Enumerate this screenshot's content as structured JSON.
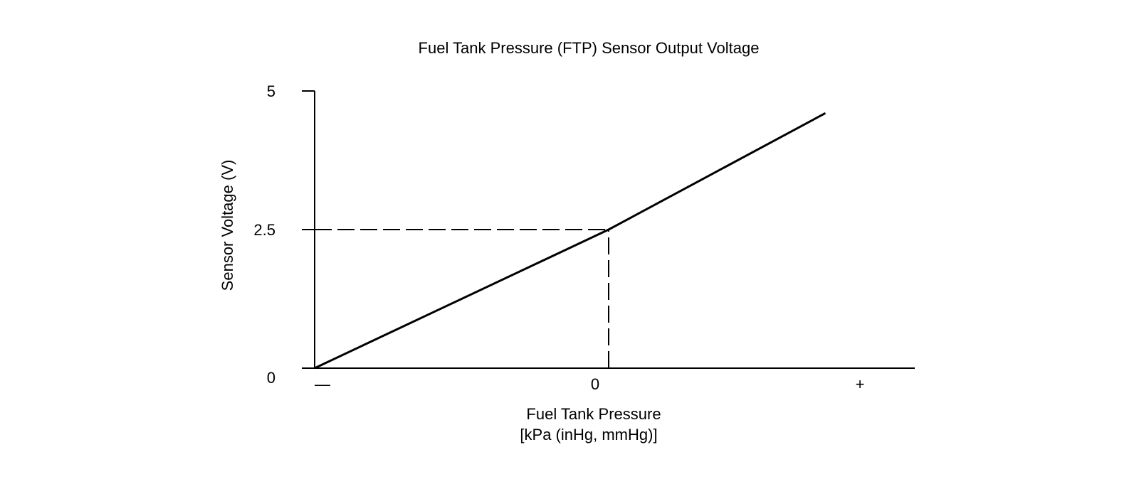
{
  "chart_data": {
    "type": "line",
    "title": "Fuel Tank Pressure (FTP) Sensor Output Voltage",
    "xlabel": "Fuel Tank Pressure",
    "xlabel_units": "[kPa (inHg, mmHg)]",
    "ylabel": "Sensor Voltage (V)",
    "ylim": [
      0,
      5
    ],
    "xlim": [
      -1,
      1
    ],
    "grid": false,
    "y_ticks": [
      {
        "value": 0,
        "label": "0"
      },
      {
        "value": 2.5,
        "label": "2.5"
      },
      {
        "value": 5,
        "label": "5"
      }
    ],
    "x_ticks": [
      {
        "value": -1,
        "label": "—"
      },
      {
        "value": 0,
        "label": "0"
      },
      {
        "value": 1,
        "label": "+"
      }
    ],
    "series": [
      {
        "x": [
          -1,
          0,
          0.88
        ],
        "y": [
          0,
          2.5,
          4.6
        ],
        "color": "#000000"
      }
    ],
    "reference_lines": [
      {
        "type": "horizontal",
        "y": 2.5,
        "x_to": 0,
        "style": "dashed"
      },
      {
        "type": "vertical",
        "x": 0,
        "y_to": 2.5,
        "style": "dashed"
      }
    ]
  }
}
